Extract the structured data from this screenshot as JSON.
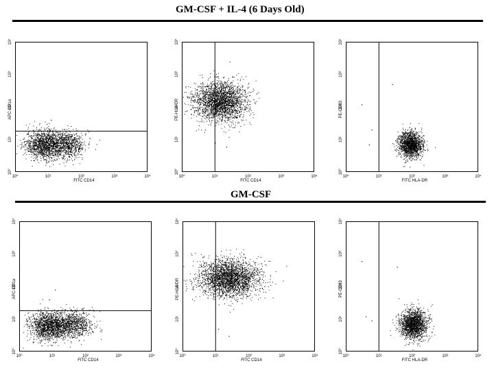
{
  "sections": [
    {
      "title": "GM-CSF + IL-4  (6 Days Old)"
    },
    {
      "title": "GM-CSF"
    }
  ],
  "chart_data": [
    {
      "type": "scatter",
      "title": "",
      "xlabel": "FITC CD14",
      "ylabel": "APC-CD1a",
      "xscale": "log",
      "yscale": "log",
      "xlim": [
        1,
        10000
      ],
      "ylim": [
        1,
        10000
      ],
      "xticks": [
        "10⁰",
        "10¹",
        "10²",
        "10³",
        "10⁴"
      ],
      "yticks": [
        "10⁰",
        "10¹",
        "10²",
        "10³",
        "10⁴"
      ],
      "gate": {
        "type": "horizontal",
        "y": 18
      },
      "clusters": [
        {
          "cx": 8,
          "cy": 7,
          "sx": 0.3,
          "sy": 0.22,
          "n": 1400
        },
        {
          "cx": 40,
          "cy": 7,
          "sx": 0.25,
          "sy": 0.2,
          "n": 700
        }
      ],
      "outliers": [
        [
          12,
          40
        ],
        [
          9,
          30
        ],
        [
          15,
          14
        ]
      ]
    },
    {
      "type": "scatter",
      "title": "",
      "xlabel": "FITC CD14",
      "ylabel": "PE-HLA-DR",
      "xscale": "log",
      "yscale": "log",
      "xlim": [
        1,
        10000
      ],
      "ylim": [
        1,
        10000
      ],
      "xticks": [
        "10⁰",
        "10¹",
        "10²",
        "10³",
        "10⁴"
      ],
      "yticks": [
        "10⁰",
        "10¹",
        "10²",
        "10³",
        "10⁴"
      ],
      "gate": {
        "type": "vertical",
        "x": 10
      },
      "clusters": [
        {
          "cx": 14,
          "cy": 150,
          "sx": 0.4,
          "sy": 0.3,
          "n": 2400
        }
      ],
      "outliers": [
        [
          10,
          8
        ],
        [
          22,
          6
        ],
        [
          5,
          20
        ]
      ]
    },
    {
      "type": "scatter",
      "title": "",
      "xlabel": "FITC HLA-DR",
      "ylabel": "PE-CD83",
      "xscale": "log",
      "yscale": "log",
      "xlim": [
        1,
        10000
      ],
      "ylim": [
        1,
        10000
      ],
      "xticks": [
        "10⁰",
        "10¹",
        "10²",
        "10³",
        "10⁴"
      ],
      "yticks": [
        "10⁰",
        "10¹",
        "10²",
        "10³",
        "10⁴"
      ],
      "gate": {
        "type": "vertical",
        "x": 10
      },
      "clusters": [
        {
          "cx": 90,
          "cy": 7,
          "sx": 0.18,
          "sy": 0.2,
          "n": 1600
        }
      ],
      "outliers": [
        [
          3,
          120
        ],
        [
          25,
          500
        ],
        [
          5,
          7
        ],
        [
          6,
          20
        ]
      ]
    },
    {
      "type": "scatter",
      "title": "",
      "xlabel": "FITC CD14",
      "ylabel": "APC-CD1a",
      "xscale": "log",
      "yscale": "log",
      "xlim": [
        1,
        10000
      ],
      "ylim": [
        1,
        10000
      ],
      "xticks": [
        "10⁰",
        "10¹",
        "10²",
        "10³",
        "10⁴"
      ],
      "yticks": [
        "10⁰",
        "10¹",
        "10²",
        "10³",
        "10⁴"
      ],
      "gate": {
        "type": "horizontal",
        "y": 18
      },
      "clusters": [
        {
          "cx": 8,
          "cy": 6,
          "sx": 0.3,
          "sy": 0.22,
          "n": 1500
        },
        {
          "cx": 45,
          "cy": 7,
          "sx": 0.28,
          "sy": 0.2,
          "n": 800
        }
      ],
      "outliers": [
        [
          12,
          80
        ],
        [
          8,
          40
        ]
      ]
    },
    {
      "type": "scatter",
      "title": "",
      "xlabel": "FITC CD14",
      "ylabel": "PE-HLA-DR",
      "xscale": "log",
      "yscale": "log",
      "xlim": [
        1,
        10000
      ],
      "ylim": [
        1,
        10000
      ],
      "xticks": [
        "10⁰",
        "10¹",
        "10²",
        "10³",
        "10⁴"
      ],
      "yticks": [
        "10⁰",
        "10¹",
        "10²",
        "10³",
        "10⁴"
      ],
      "gate": {
        "type": "vertical",
        "x": 10
      },
      "clusters": [
        {
          "cx": 25,
          "cy": 180,
          "sx": 0.45,
          "sy": 0.28,
          "n": 2600
        }
      ],
      "outliers": [
        [
          12,
          5
        ],
        [
          25,
          3
        ],
        [
          4,
          800
        ]
      ]
    },
    {
      "type": "scatter",
      "title": "",
      "xlabel": "FITC HLA-DR",
      "ylabel": "PE-CD83",
      "xscale": "log",
      "yscale": "log",
      "xlim": [
        1,
        10000
      ],
      "ylim": [
        1,
        10000
      ],
      "xticks": [
        "10⁰",
        "10¹",
        "10²",
        "10³",
        "10⁴"
      ],
      "yticks": [
        "10⁰",
        "10¹",
        "10²",
        "10³",
        "10⁴"
      ],
      "gate": {
        "type": "vertical",
        "x": 10
      },
      "clusters": [
        {
          "cx": 110,
          "cy": 7,
          "sx": 0.2,
          "sy": 0.22,
          "n": 1700
        }
      ],
      "outliers": [
        [
          4,
          12
        ],
        [
          6,
          9
        ],
        [
          3,
          600
        ],
        [
          35,
          400
        ]
      ]
    }
  ]
}
